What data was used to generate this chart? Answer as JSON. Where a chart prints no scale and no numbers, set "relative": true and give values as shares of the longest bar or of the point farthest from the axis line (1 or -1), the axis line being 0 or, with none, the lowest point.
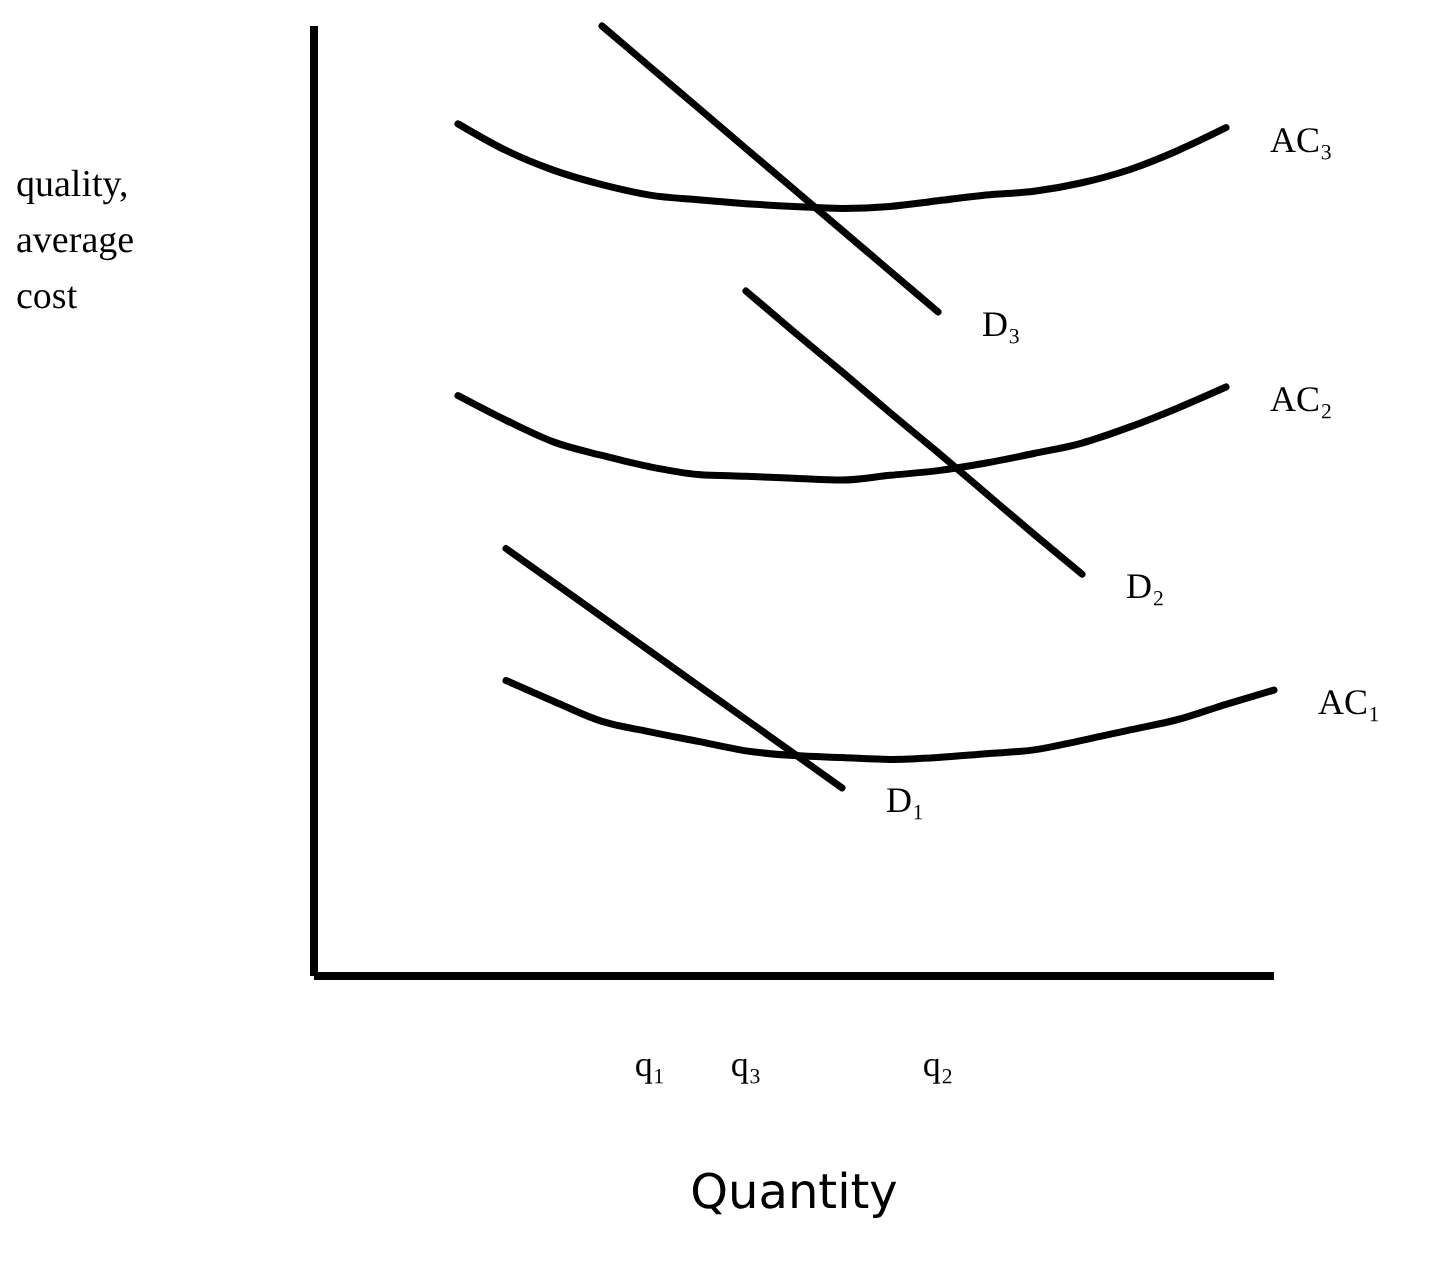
{
  "chart_data": {
    "type": "line",
    "relative": true,
    "xlabel": "Quantity",
    "ylabel": "quality,\naverage\ncost",
    "line_style": "solid",
    "categories": [
      null,
      null,
      null,
      null,
      null,
      null,
      null,
      "q₁",
      null,
      "q₃",
      null,
      null,
      null,
      "q₂",
      null,
      null,
      null,
      null,
      null,
      null,
      null
    ],
    "series": [
      {
        "name": "AC₃",
        "color": "#000000",
        "values": [
          null,
          null,
          null,
          0.897,
          0.869,
          0.848,
          0.833,
          0.822,
          0.817,
          0.813,
          0.81,
          0.808,
          0.81,
          0.816,
          0.822,
          0.826,
          0.835,
          0.849,
          0.869,
          0.893,
          null
        ]
      },
      {
        "name": "D₃",
        "color": "#000000",
        "values": [
          null,
          null,
          null,
          null,
          null,
          null,
          1.0,
          0.957,
          0.914,
          0.871,
          0.828,
          0.785,
          0.742,
          0.699,
          null,
          null,
          null,
          null,
          null,
          null,
          null
        ]
      },
      {
        "name": "AC₂",
        "color": "#000000",
        "values": [
          null,
          null,
          null,
          0.611,
          0.585,
          0.562,
          0.548,
          0.536,
          0.528,
          0.526,
          0.524,
          0.522,
          0.527,
          0.532,
          0.54,
          0.55,
          0.561,
          0.578,
          0.598,
          0.62,
          null
        ]
      },
      {
        "name": "D₂",
        "color": "#000000",
        "values": [
          null,
          null,
          null,
          null,
          null,
          null,
          null,
          null,
          null,
          0.721,
          0.678,
          0.636,
          0.593,
          0.551,
          0.508,
          0.465,
          0.423,
          null,
          null,
          null,
          null
        ]
      },
      {
        "name": "AC₁",
        "color": "#000000",
        "values": [
          null,
          null,
          null,
          null,
          0.311,
          0.289,
          0.268,
          0.257,
          0.247,
          0.237,
          0.232,
          0.23,
          0.228,
          0.23,
          0.234,
          0.238,
          0.248,
          0.259,
          0.27,
          0.286,
          0.301
        ]
      },
      {
        "name": "D₁",
        "color": "#000000",
        "values": [
          null,
          null,
          null,
          null,
          0.45,
          0.414,
          0.378,
          0.342,
          0.306,
          0.27,
          0.234,
          0.198,
          null,
          null,
          null,
          null,
          null,
          null,
          null,
          null,
          null
        ]
      }
    ]
  }
}
